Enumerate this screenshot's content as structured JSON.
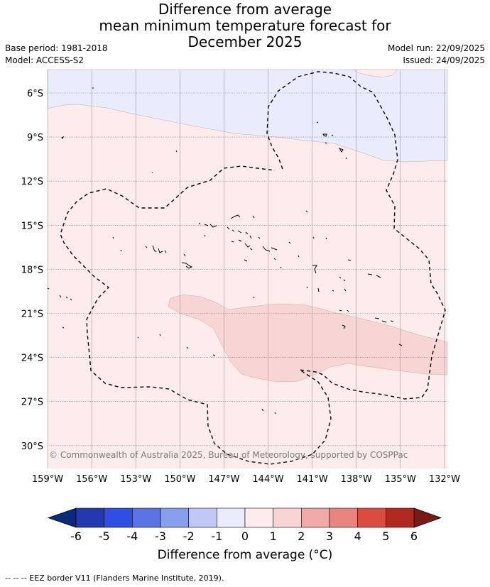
{
  "title": {
    "line1": "Difference from average",
    "line2": "mean minimum temperature forecast for",
    "line3": "December 2025"
  },
  "meta_left": {
    "base_period": "Base period: 1981-2018",
    "model": "Model: ACCESS-S2"
  },
  "meta_right": {
    "model_run": "Model run: 22/09/2025",
    "issued": "Issued: 24/09/2025"
  },
  "copyright": "© Commonwealth of Australia 2025, Bureau of Meteorology, supported by COSPPac",
  "map": {
    "lat_labels": [
      "6°S",
      "9°S",
      "12°S",
      "15°S",
      "18°S",
      "21°S",
      "24°S",
      "27°S",
      "30°S"
    ],
    "lon_labels": [
      "159°W",
      "156°W",
      "153°W",
      "150°W",
      "147°W",
      "144°W",
      "141°W",
      "138°W",
      "135°W",
      "132°W"
    ],
    "lat_range": [
      -4.3,
      -31.5
    ],
    "lon_range": [
      -159,
      -131.9
    ]
  },
  "colorbar": {
    "ticks": [
      "-6",
      "-5",
      "-4",
      "-3",
      "-2",
      "-1",
      "0",
      "1",
      "2",
      "3",
      "4",
      "5",
      "6"
    ],
    "colors": [
      "#0b2a7a",
      "#2439b0",
      "#2e4fe0",
      "#5a74e6",
      "#8a9eee",
      "#c0c9f5",
      "#e8ecfc",
      "#fdeceb",
      "#f6d5d4",
      "#efaaa7",
      "#e98580",
      "#db4c40",
      "#b0291f",
      "#7a1a15"
    ],
    "label": "Difference from average (°C)"
  },
  "footer": "-- -- -- EEZ border V11 (Flanders Marine Institute, 2019)."
}
